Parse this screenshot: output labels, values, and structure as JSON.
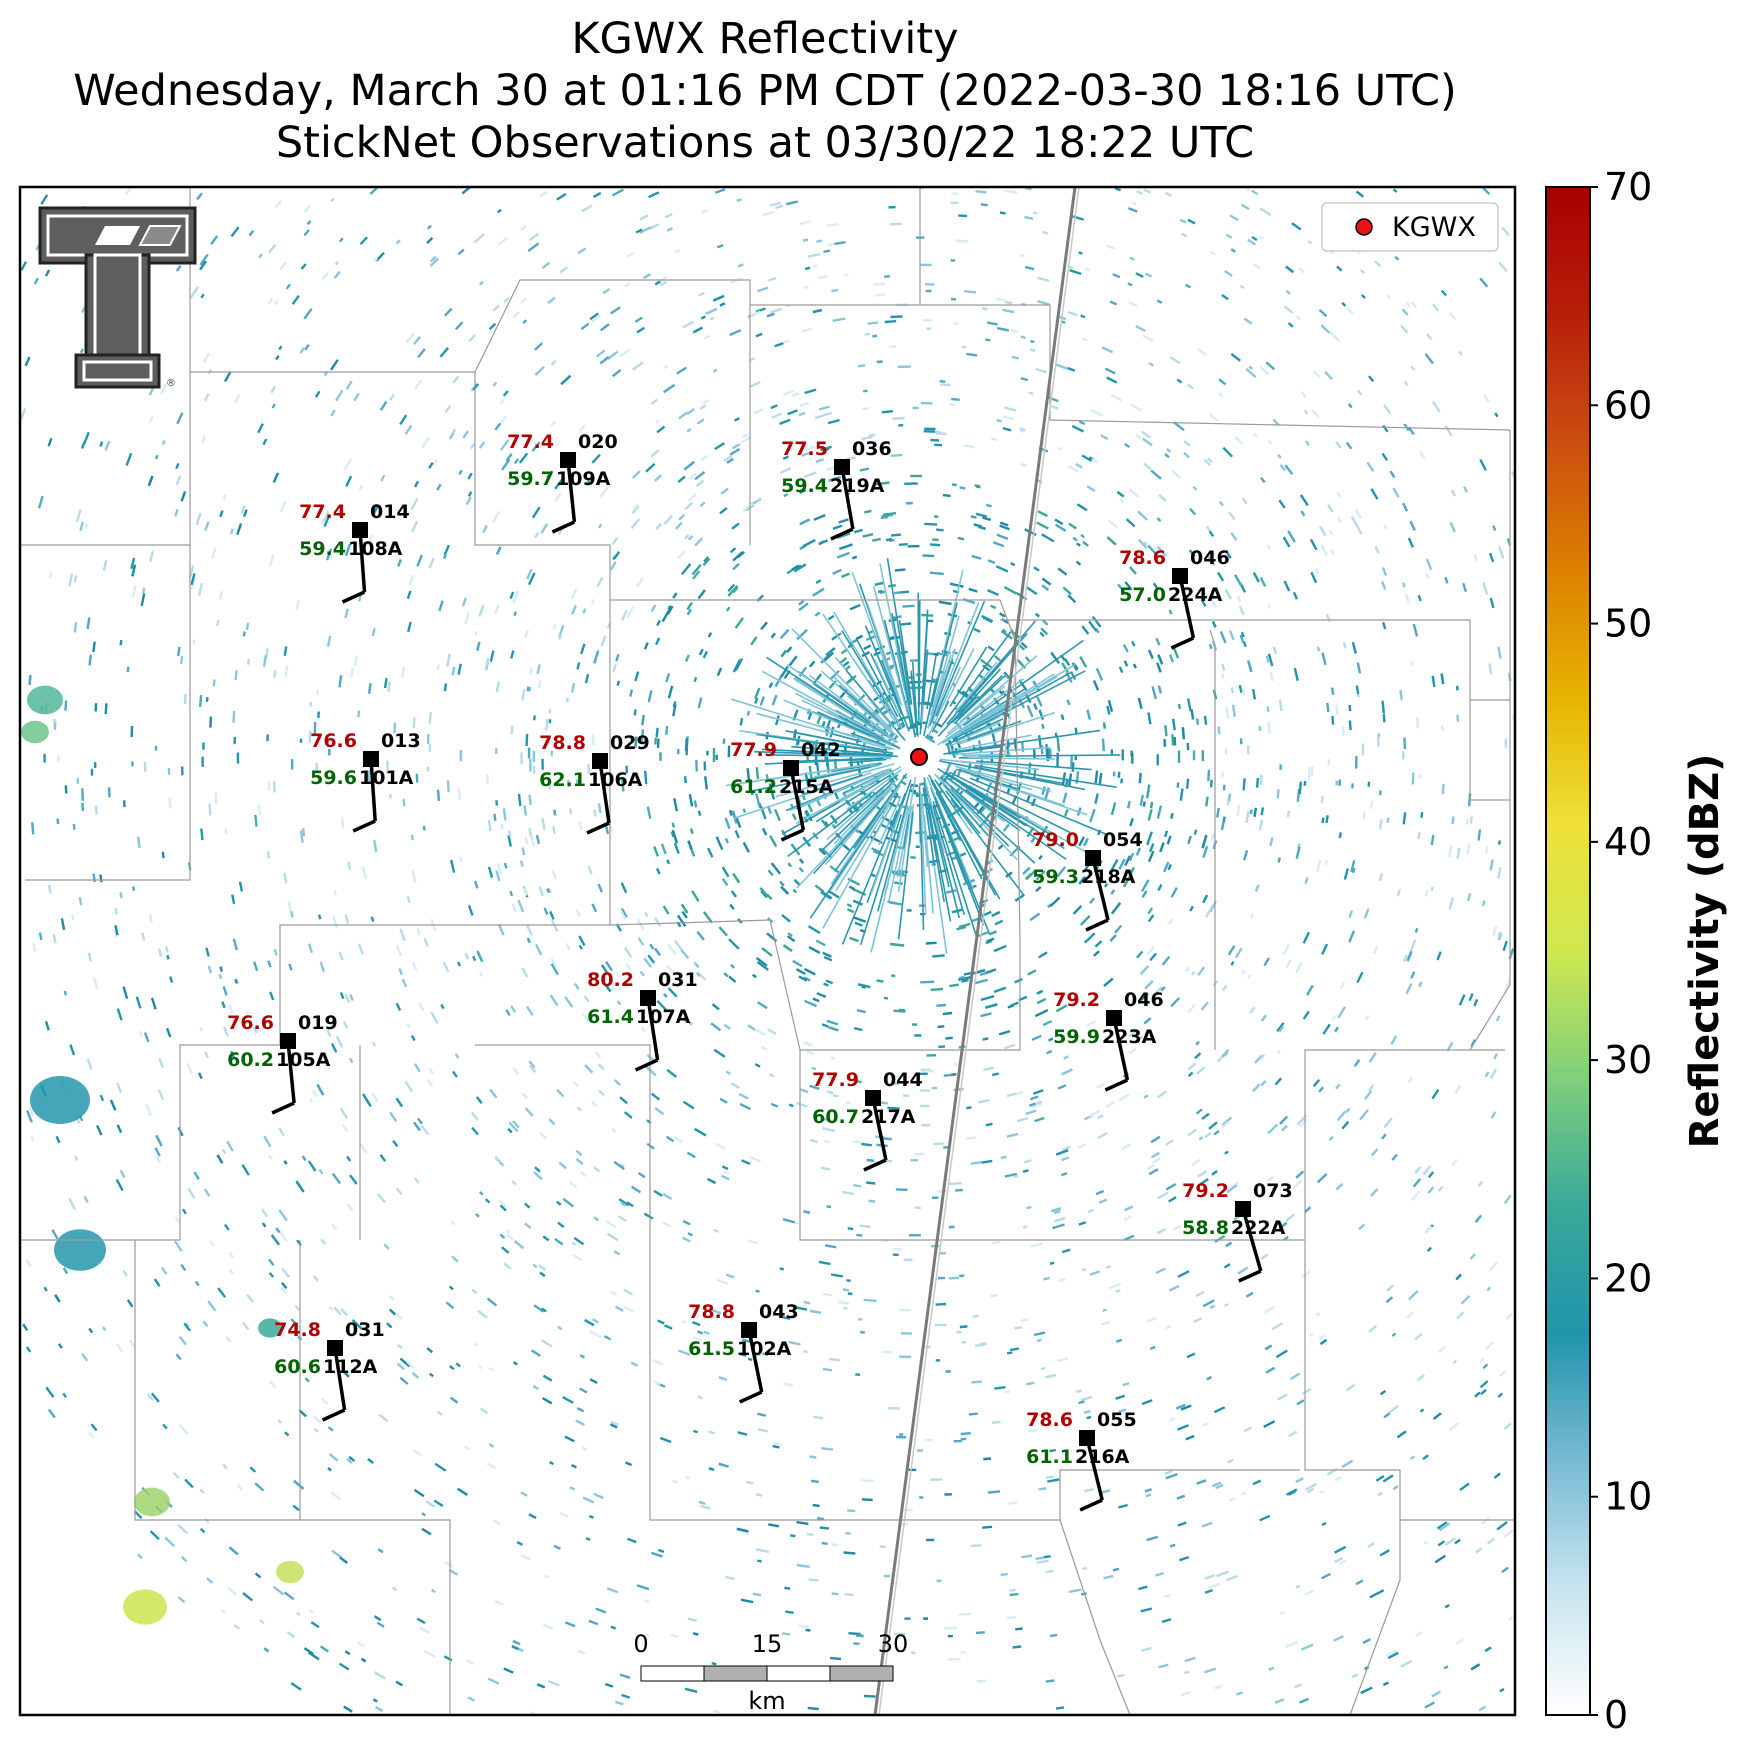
{
  "title": {
    "line1": "KGWX Reflectivity",
    "line2": "Wednesday, March 30 at 01:16 PM CDT (2022-03-30 18:16 UTC)",
    "line3": "StickNet Observations at 03/30/22 18:22 UTC"
  },
  "legend": {
    "label": "KGWX",
    "marker_color": "#ee1111"
  },
  "radar": {
    "name": "KGWX"
  },
  "colorbar": {
    "label": "Reflectivity (dBZ)",
    "ticks": [
      "0",
      "10",
      "20",
      "30",
      "40",
      "50",
      "60",
      "70"
    ],
    "min": 0,
    "max": 70,
    "stops": [
      "#ffffff",
      "#c8e4ef",
      "#79bad4",
      "#1f95aa",
      "#3aa99a",
      "#7fcf7c",
      "#cfe84f",
      "#efe038",
      "#e6b300",
      "#dc8000",
      "#cc4e10",
      "#b81f0a",
      "#a80000"
    ]
  },
  "scalebar": {
    "labels": [
      "0",
      "15",
      "30"
    ],
    "unit": "km"
  },
  "colors": {
    "temperature": "#b00000",
    "dewpoint": "#006400",
    "station": "#000000"
  },
  "stations": [
    {
      "id": "109A",
      "temp": "77.4",
      "dew": "59.7",
      "dir": "020"
    },
    {
      "id": "219A",
      "temp": "77.5",
      "dew": "59.4",
      "dir": "036"
    },
    {
      "id": "108A",
      "temp": "77.4",
      "dew": "59.4",
      "dir": "014"
    },
    {
      "id": "224A",
      "temp": "78.6",
      "dew": "57.0",
      "dir": "046"
    },
    {
      "id": "101A",
      "temp": "76.6",
      "dew": "59.6",
      "dir": "013"
    },
    {
      "id": "106A",
      "temp": "78.8",
      "dew": "62.1",
      "dir": "029"
    },
    {
      "id": "215A",
      "temp": "77.9",
      "dew": "61.2",
      "dir": "042"
    },
    {
      "id": "218A",
      "temp": "79.0",
      "dew": "59.3",
      "dir": "054"
    },
    {
      "id": "107A",
      "temp": "80.2",
      "dew": "61.4",
      "dir": "031"
    },
    {
      "id": "223A",
      "temp": "79.2",
      "dew": "59.9",
      "dir": "046"
    },
    {
      "id": "105A",
      "temp": "76.6",
      "dew": "60.2",
      "dir": "019"
    },
    {
      "id": "217A",
      "temp": "77.9",
      "dew": "60.7",
      "dir": "044"
    },
    {
      "id": "222A",
      "temp": "79.2",
      "dew": "58.8",
      "dir": "073"
    },
    {
      "id": "102A",
      "temp": "78.8",
      "dew": "61.5",
      "dir": "043"
    },
    {
      "id": "112A",
      "temp": "74.8",
      "dew": "60.6",
      "dir": "031"
    },
    {
      "id": "216A",
      "temp": "78.6",
      "dew": "61.1",
      "dir": "055"
    }
  ]
}
